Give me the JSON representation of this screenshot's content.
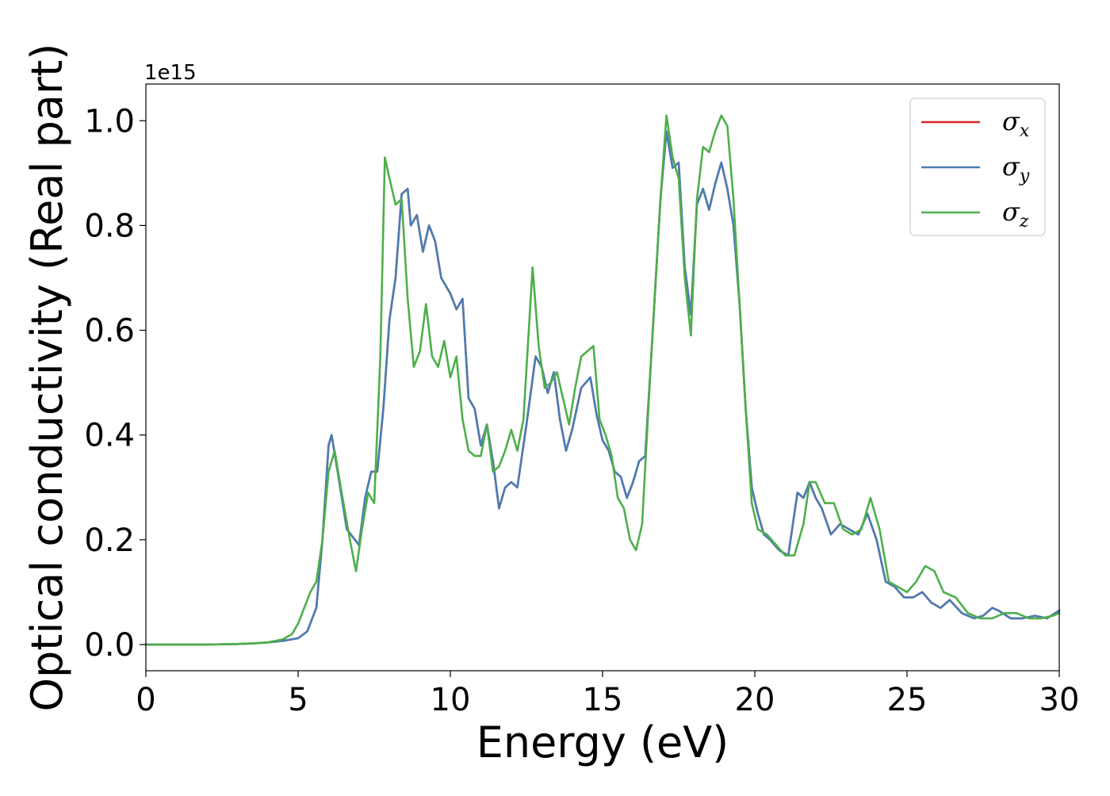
{
  "chart_data": {
    "type": "line",
    "title": "",
    "xlabel": "Energy (eV)",
    "ylabel": "Optical conductivity (Real part)",
    "y_offset_label": "1e15",
    "xlim": [
      0,
      30
    ],
    "ylim": [
      -0.05,
      1.07
    ],
    "x_ticks": [
      "0",
      "5",
      "10",
      "15",
      "20",
      "25",
      "30"
    ],
    "y_ticks": [
      "0.0",
      "0.2",
      "0.4",
      "0.6",
      "0.8",
      "1.0"
    ],
    "x_tick_values": [
      0,
      5,
      10,
      15,
      20,
      25,
      30
    ],
    "y_tick_values": [
      0.0,
      0.2,
      0.4,
      0.6,
      0.8,
      1.0
    ],
    "grid": false,
    "legend_position": "top-right",
    "series": [
      {
        "name": "σx",
        "legend_base": "σ",
        "legend_sub": "x",
        "color": "#d62728",
        "x": [
          0,
          1,
          2,
          3,
          3.5,
          4,
          4.5,
          5,
          5.3,
          5.6,
          5.8,
          6,
          6.1,
          6.3,
          6.6,
          7,
          7.2,
          7.4,
          7.6,
          7.8,
          8,
          8.2,
          8.4,
          8.6,
          8.7,
          8.9,
          9.1,
          9.3,
          9.5,
          9.7,
          10,
          10.2,
          10.4,
          10.6,
          10.8,
          11,
          11.2,
          11.4,
          11.6,
          11.8,
          12,
          12.2,
          12.5,
          12.8,
          13,
          13.2,
          13.4,
          13.6,
          13.8,
          14,
          14.3,
          14.6,
          14.8,
          15,
          15.2,
          15.4,
          15.6,
          15.8,
          16,
          16.2,
          16.4,
          16.6,
          16.9,
          17.1,
          17.3,
          17.5,
          17.7,
          17.9,
          18.1,
          18.3,
          18.5,
          18.7,
          18.9,
          19.1,
          19.3,
          19.5,
          19.7,
          19.9,
          20.1,
          20.3,
          20.5,
          20.8,
          21.1,
          21.4,
          21.6,
          21.8,
          22,
          22.2,
          22.5,
          22.8,
          23.1,
          23.4,
          23.7,
          24,
          24.3,
          24.6,
          24.9,
          25.2,
          25.5,
          25.8,
          26.1,
          26.4,
          26.8,
          27.2,
          27.5,
          27.8,
          28,
          28.4,
          28.8,
          29.2,
          29.6,
          30
        ],
        "values": [
          0.0,
          0.0,
          0.0,
          0.001,
          0.002,
          0.004,
          0.007,
          0.012,
          0.025,
          0.07,
          0.2,
          0.38,
          0.4,
          0.33,
          0.22,
          0.19,
          0.28,
          0.33,
          0.33,
          0.45,
          0.62,
          0.7,
          0.86,
          0.87,
          0.8,
          0.82,
          0.75,
          0.8,
          0.77,
          0.7,
          0.67,
          0.64,
          0.66,
          0.47,
          0.45,
          0.38,
          0.42,
          0.35,
          0.26,
          0.3,
          0.31,
          0.3,
          0.42,
          0.55,
          0.53,
          0.48,
          0.52,
          0.43,
          0.37,
          0.41,
          0.49,
          0.51,
          0.44,
          0.39,
          0.37,
          0.33,
          0.32,
          0.28,
          0.31,
          0.35,
          0.36,
          0.55,
          0.85,
          0.98,
          0.91,
          0.92,
          0.72,
          0.63,
          0.84,
          0.87,
          0.83,
          0.88,
          0.92,
          0.87,
          0.8,
          0.65,
          0.45,
          0.3,
          0.25,
          0.21,
          0.2,
          0.18,
          0.17,
          0.29,
          0.28,
          0.31,
          0.28,
          0.26,
          0.21,
          0.23,
          0.22,
          0.21,
          0.25,
          0.2,
          0.12,
          0.11,
          0.09,
          0.09,
          0.1,
          0.08,
          0.07,
          0.085,
          0.06,
          0.05,
          0.055,
          0.07,
          0.065,
          0.05,
          0.05,
          0.055,
          0.05,
          0.065
        ]
      },
      {
        "name": "σy",
        "legend_base": "σ",
        "legend_sub": "y",
        "color": "#4a7db4",
        "x": [
          0,
          1,
          2,
          3,
          3.5,
          4,
          4.5,
          5,
          5.3,
          5.6,
          5.8,
          6,
          6.1,
          6.3,
          6.6,
          7,
          7.2,
          7.4,
          7.6,
          7.8,
          8,
          8.2,
          8.4,
          8.6,
          8.7,
          8.9,
          9.1,
          9.3,
          9.5,
          9.7,
          10,
          10.2,
          10.4,
          10.6,
          10.8,
          11,
          11.2,
          11.4,
          11.6,
          11.8,
          12,
          12.2,
          12.5,
          12.8,
          13,
          13.2,
          13.4,
          13.6,
          13.8,
          14,
          14.3,
          14.6,
          14.8,
          15,
          15.2,
          15.4,
          15.6,
          15.8,
          16,
          16.2,
          16.4,
          16.6,
          16.9,
          17.1,
          17.3,
          17.5,
          17.7,
          17.9,
          18.1,
          18.3,
          18.5,
          18.7,
          18.9,
          19.1,
          19.3,
          19.5,
          19.7,
          19.9,
          20.1,
          20.3,
          20.5,
          20.8,
          21.1,
          21.4,
          21.6,
          21.8,
          22,
          22.2,
          22.5,
          22.8,
          23.1,
          23.4,
          23.7,
          24,
          24.3,
          24.6,
          24.9,
          25.2,
          25.5,
          25.8,
          26.1,
          26.4,
          26.8,
          27.2,
          27.5,
          27.8,
          28,
          28.4,
          28.8,
          29.2,
          29.6,
          30
        ],
        "values": [
          0.0,
          0.0,
          0.0,
          0.001,
          0.002,
          0.004,
          0.007,
          0.012,
          0.025,
          0.07,
          0.2,
          0.38,
          0.4,
          0.33,
          0.22,
          0.19,
          0.28,
          0.33,
          0.33,
          0.45,
          0.62,
          0.7,
          0.86,
          0.87,
          0.8,
          0.82,
          0.75,
          0.8,
          0.77,
          0.7,
          0.67,
          0.64,
          0.66,
          0.47,
          0.45,
          0.38,
          0.42,
          0.35,
          0.26,
          0.3,
          0.31,
          0.3,
          0.42,
          0.55,
          0.53,
          0.48,
          0.52,
          0.43,
          0.37,
          0.41,
          0.49,
          0.51,
          0.44,
          0.39,
          0.37,
          0.33,
          0.32,
          0.28,
          0.31,
          0.35,
          0.36,
          0.55,
          0.85,
          0.98,
          0.91,
          0.92,
          0.72,
          0.63,
          0.84,
          0.87,
          0.83,
          0.88,
          0.92,
          0.87,
          0.8,
          0.65,
          0.45,
          0.3,
          0.25,
          0.21,
          0.2,
          0.18,
          0.17,
          0.29,
          0.28,
          0.31,
          0.28,
          0.26,
          0.21,
          0.23,
          0.22,
          0.21,
          0.25,
          0.2,
          0.12,
          0.11,
          0.09,
          0.09,
          0.1,
          0.08,
          0.07,
          0.085,
          0.06,
          0.05,
          0.055,
          0.07,
          0.065,
          0.05,
          0.05,
          0.055,
          0.05,
          0.065
        ]
      },
      {
        "name": "σz",
        "legend_base": "σ",
        "legend_sub": "z",
        "color": "#4daf4a",
        "x": [
          0,
          1,
          2,
          3,
          3.5,
          4,
          4.5,
          4.8,
          5,
          5.2,
          5.4,
          5.6,
          5.8,
          6,
          6.2,
          6.4,
          6.7,
          6.9,
          7.1,
          7.3,
          7.5,
          7.7,
          7.85,
          8,
          8.2,
          8.4,
          8.6,
          8.8,
          9,
          9.2,
          9.4,
          9.6,
          9.8,
          10,
          10.2,
          10.4,
          10.6,
          10.8,
          11,
          11.2,
          11.4,
          11.6,
          11.8,
          12,
          12.2,
          12.4,
          12.7,
          12.9,
          13.1,
          13.3,
          13.5,
          13.7,
          13.9,
          14.1,
          14.3,
          14.5,
          14.7,
          14.9,
          15.1,
          15.3,
          15.5,
          15.7,
          15.9,
          16.1,
          16.3,
          16.6,
          16.9,
          17.1,
          17.3,
          17.5,
          17.7,
          17.9,
          18.1,
          18.3,
          18.5,
          18.7,
          18.9,
          19.1,
          19.3,
          19.5,
          19.7,
          19.9,
          20.1,
          20.4,
          20.7,
          21,
          21.3,
          21.6,
          21.8,
          22,
          22.3,
          22.6,
          22.9,
          23.2,
          23.5,
          23.8,
          24.1,
          24.4,
          24.7,
          25,
          25.3,
          25.6,
          25.9,
          26.2,
          26.6,
          27,
          27.4,
          27.8,
          28.2,
          28.6,
          29,
          29.4,
          29.8,
          30
        ],
        "values": [
          0.0,
          0.0,
          0.0,
          0.001,
          0.002,
          0.004,
          0.01,
          0.02,
          0.04,
          0.07,
          0.1,
          0.12,
          0.2,
          0.33,
          0.37,
          0.3,
          0.2,
          0.14,
          0.22,
          0.29,
          0.27,
          0.55,
          0.93,
          0.89,
          0.84,
          0.85,
          0.66,
          0.53,
          0.56,
          0.65,
          0.55,
          0.53,
          0.58,
          0.51,
          0.55,
          0.43,
          0.37,
          0.36,
          0.36,
          0.42,
          0.33,
          0.34,
          0.37,
          0.41,
          0.37,
          0.43,
          0.72,
          0.57,
          0.49,
          0.5,
          0.52,
          0.47,
          0.42,
          0.49,
          0.55,
          0.56,
          0.57,
          0.43,
          0.4,
          0.36,
          0.28,
          0.26,
          0.2,
          0.18,
          0.23,
          0.55,
          0.85,
          1.01,
          0.93,
          0.89,
          0.7,
          0.59,
          0.85,
          0.95,
          0.94,
          0.98,
          1.01,
          0.99,
          0.85,
          0.65,
          0.45,
          0.27,
          0.22,
          0.21,
          0.19,
          0.17,
          0.17,
          0.23,
          0.31,
          0.31,
          0.27,
          0.27,
          0.22,
          0.21,
          0.22,
          0.28,
          0.22,
          0.12,
          0.11,
          0.1,
          0.12,
          0.15,
          0.14,
          0.1,
          0.09,
          0.06,
          0.05,
          0.05,
          0.06,
          0.06,
          0.05,
          0.05,
          0.055,
          0.06
        ]
      }
    ]
  }
}
